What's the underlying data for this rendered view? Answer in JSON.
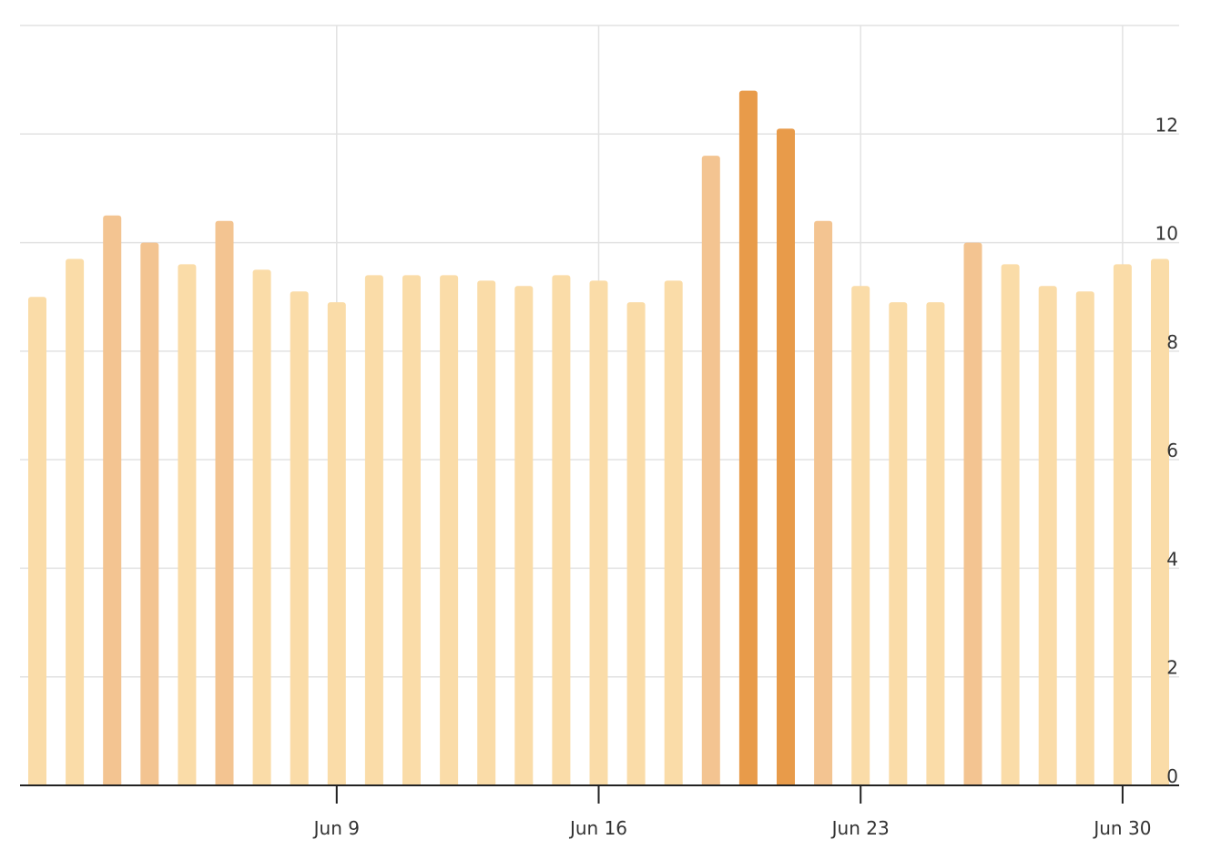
{
  "chart_data": {
    "type": "bar",
    "title": "",
    "xlabel": "",
    "ylabel": "",
    "x": [
      "2024-06-01",
      "2024-06-02",
      "2024-06-03",
      "2024-06-04",
      "2024-06-05",
      "2024-06-06",
      "2024-06-07",
      "2024-06-08",
      "2024-06-09",
      "2024-06-10",
      "2024-06-11",
      "2024-06-12",
      "2024-06-13",
      "2024-06-14",
      "2024-06-15",
      "2024-06-16",
      "2024-06-17",
      "2024-06-18",
      "2024-06-19",
      "2024-06-20",
      "2024-06-21",
      "2024-06-22",
      "2024-06-23",
      "2024-06-24",
      "2024-06-25",
      "2024-06-26",
      "2024-06-27",
      "2024-06-28",
      "2024-06-29",
      "2024-06-30",
      "2024-07-01"
    ],
    "values": [
      9.0,
      9.7,
      10.5,
      10.0,
      9.6,
      10.4,
      9.5,
      9.1,
      8.9,
      9.4,
      9.4,
      9.4,
      9.3,
      9.2,
      9.4,
      9.3,
      8.9,
      9.3,
      11.6,
      12.8,
      12.1,
      10.4,
      9.2,
      8.9,
      8.9,
      10.0,
      9.6,
      9.2,
      9.1,
      9.6,
      9.7
    ],
    "ylim": [
      0,
      14
    ],
    "yticks": [
      0,
      2,
      4,
      6,
      8,
      10,
      12
    ],
    "xticks": [
      {
        "date": "2024-06-09",
        "label": "Jun 9"
      },
      {
        "date": "2024-06-16",
        "label": "Jun 16"
      },
      {
        "date": "2024-06-23",
        "label": "Jun 23"
      },
      {
        "date": "2024-06-30",
        "label": "Jun 30"
      }
    ],
    "grid": true,
    "y_axis_position": "right",
    "color_scale": {
      "low": "#fadca8",
      "mid": "#f3c491",
      "high": "#e89b4a"
    }
  }
}
